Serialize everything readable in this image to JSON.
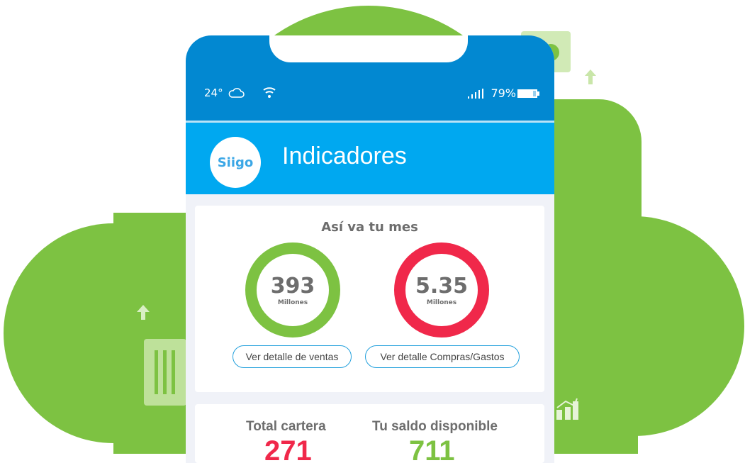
{
  "colors": {
    "cloud": "#7dc242",
    "status_bar": "#0288d1",
    "header": "#00a8f0",
    "sales": "#7dc242",
    "purchases": "#f0284a",
    "button_border": "#27a2dd"
  },
  "status_bar": {
    "temperature": "24°",
    "weather_icon": "cloud-icon",
    "wifi_icon": "wifi-icon",
    "signal_icon": "signal-icon",
    "battery": "79%",
    "battery_icon": "battery-icon"
  },
  "header": {
    "logo": "Siigo",
    "title": "Indicadores"
  },
  "month_card": {
    "title": "Así va tu mes",
    "sales": {
      "value": "393",
      "unit": "Millones",
      "button": "Ver detalle de ventas"
    },
    "purchases": {
      "value": "5.35",
      "unit": "Millones",
      "button": "Ver detalle Compras/Gastos"
    }
  },
  "balance_card": {
    "portfolio": {
      "label": "Total cartera",
      "value": "271"
    },
    "available": {
      "label": "Tu saldo disponible",
      "value": "711"
    }
  }
}
